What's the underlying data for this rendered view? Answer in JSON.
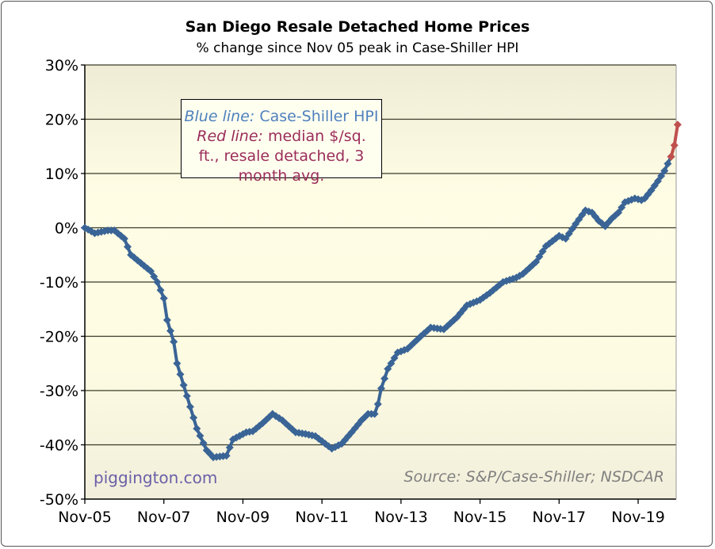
{
  "chart_data": {
    "type": "line",
    "title": "San Diego Resale Detached Home Prices",
    "subtitle": "% change since Nov 05 peak in Case-Shiller HPI",
    "xlabel": "",
    "ylabel": "",
    "x_unit": "months since Nov-05",
    "xlim": [
      0,
      180
    ],
    "ylim": [
      -50,
      30
    ],
    "y_ticks": [
      30,
      20,
      10,
      0,
      -10,
      -20,
      -30,
      -40,
      -50
    ],
    "y_tick_labels": [
      "30%",
      "20%",
      "10%",
      "0%",
      "-10%",
      "-20%",
      "-30%",
      "-40%",
      "-50%"
    ],
    "x_ticks": [
      0,
      24,
      48,
      72,
      96,
      120,
      144,
      168
    ],
    "x_tick_labels": [
      "Nov-05",
      "Nov-07",
      "Nov-09",
      "Nov-11",
      "Nov-13",
      "Nov-15",
      "Nov-17",
      "Nov-19"
    ],
    "grid": "horizontal",
    "series": [
      {
        "name": "Case-Shiller HPI",
        "color": "#3a6496",
        "points": [
          [
            0,
            0
          ],
          [
            3,
            -1
          ],
          [
            7,
            -0.5
          ],
          [
            9,
            -0.5
          ],
          [
            12,
            -2
          ],
          [
            14,
            -5
          ],
          [
            18,
            -7
          ],
          [
            20,
            -8
          ],
          [
            22,
            -10
          ],
          [
            24,
            -13
          ],
          [
            25,
            -17
          ],
          [
            27,
            -21
          ],
          [
            28,
            -25
          ],
          [
            30,
            -29
          ],
          [
            32,
            -33
          ],
          [
            34,
            -37
          ],
          [
            37,
            -41
          ],
          [
            39,
            -42.3
          ],
          [
            43,
            -42
          ],
          [
            45,
            -39
          ],
          [
            49,
            -37.7
          ],
          [
            51,
            -37.5
          ],
          [
            54,
            -36
          ],
          [
            57,
            -34.3
          ],
          [
            60,
            -35.5
          ],
          [
            64,
            -37.7
          ],
          [
            67,
            -38
          ],
          [
            70,
            -38.4
          ],
          [
            73,
            -39.8
          ],
          [
            75,
            -40.7
          ],
          [
            78,
            -39.8
          ],
          [
            81,
            -37.7
          ],
          [
            84,
            -35.5
          ],
          [
            86,
            -34.3
          ],
          [
            88,
            -34.3
          ],
          [
            89,
            -32.5
          ],
          [
            90,
            -29.6
          ],
          [
            92,
            -26
          ],
          [
            95,
            -23
          ],
          [
            98,
            -22.3
          ],
          [
            102,
            -20
          ],
          [
            105,
            -18.4
          ],
          [
            109,
            -18.7
          ],
          [
            113,
            -16.5
          ],
          [
            116,
            -14.3
          ],
          [
            120,
            -13.3
          ],
          [
            123,
            -12
          ],
          [
            127,
            -10
          ],
          [
            131,
            -9.2
          ],
          [
            133,
            -8.5
          ],
          [
            137,
            -6.3
          ],
          [
            140,
            -3.4
          ],
          [
            144,
            -1.5
          ],
          [
            146,
            -2
          ],
          [
            149,
            0.7
          ],
          [
            152,
            3.2
          ],
          [
            154,
            2.8
          ],
          [
            156,
            1.3
          ],
          [
            158,
            0.3
          ],
          [
            160,
            1.7
          ],
          [
            162,
            2.8
          ],
          [
            164,
            4.7
          ],
          [
            167,
            5.4
          ],
          [
            169,
            5.1
          ],
          [
            170,
            5.4
          ],
          [
            172,
            6.9
          ],
          [
            174,
            8.6
          ],
          [
            176,
            10.5
          ],
          [
            178,
            13.1
          ]
        ]
      },
      {
        "name": "median $/sq. ft., resale detached, 3 month avg.",
        "color": "#c0504d",
        "points": [
          [
            178,
            13.1
          ],
          [
            179,
            15.2
          ],
          [
            180,
            19
          ]
        ]
      }
    ],
    "legend": {
      "placement": "top-left",
      "blue_label": "Blue line:",
      "blue_text": "Case-Shiller HPI",
      "red_label": "Red line:",
      "red_text": "median $/sq. ft., resale detached, 3 month avg."
    },
    "annotations": {
      "watermark": "piggington.com",
      "source": "Source: S&P/Case-Shiller; NSDCAR"
    }
  }
}
